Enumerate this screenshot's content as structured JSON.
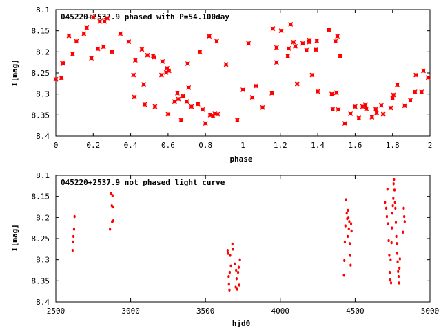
{
  "chart_data": [
    {
      "type": "scatter",
      "title": "045220+2537.9 phased with P=54.100day",
      "xlabel": "phase",
      "ylabel": "I[mag]",
      "xlim": [
        0,
        2
      ],
      "ylim": [
        8.1,
        8.4
      ],
      "y_inverted": true,
      "grid": false,
      "marker_color": "#ff0000",
      "xticks": [
        "0",
        "0.2",
        "0.4",
        "0.6",
        "0.8",
        "1",
        "1.2",
        "1.4",
        "1.6",
        "1.8",
        "2"
      ],
      "yticks": [
        "8.1",
        "8.15",
        "8.2",
        "8.25",
        "8.3",
        "8.35",
        "8.4"
      ],
      "points": [
        [
          0.0,
          8.265
        ],
        [
          0.03,
          8.262
        ],
        [
          0.035,
          8.227
        ],
        [
          0.04,
          8.228
        ],
        [
          0.07,
          8.162
        ],
        [
          0.09,
          8.205
        ],
        [
          0.11,
          8.175
        ],
        [
          0.15,
          8.157
        ],
        [
          0.165,
          8.143
        ],
        [
          0.19,
          8.215
        ],
        [
          0.2,
          8.118
        ],
        [
          0.225,
          8.193
        ],
        [
          0.235,
          8.128
        ],
        [
          0.255,
          8.188
        ],
        [
          0.26,
          8.128
        ],
        [
          0.275,
          8.12
        ],
        [
          0.3,
          8.2
        ],
        [
          0.345,
          8.157
        ],
        [
          0.39,
          8.176
        ],
        [
          0.415,
          8.255
        ],
        [
          0.42,
          8.307
        ],
        [
          0.425,
          8.22
        ],
        [
          0.46,
          8.194
        ],
        [
          0.47,
          8.277
        ],
        [
          0.475,
          8.325
        ],
        [
          0.49,
          8.208
        ],
        [
          0.52,
          8.21
        ],
        [
          0.525,
          8.213
        ],
        [
          0.53,
          8.33
        ],
        [
          0.565,
          8.255
        ],
        [
          0.57,
          8.223
        ],
        [
          0.59,
          8.249
        ],
        [
          0.595,
          8.239
        ],
        [
          0.6,
          8.348
        ],
        [
          0.605,
          8.245
        ],
        [
          0.635,
          8.318
        ],
        [
          0.65,
          8.298
        ],
        [
          0.655,
          8.312
        ],
        [
          0.67,
          8.362
        ],
        [
          0.68,
          8.305
        ],
        [
          0.7,
          8.318
        ],
        [
          0.705,
          8.228
        ],
        [
          0.71,
          8.285
        ],
        [
          0.725,
          8.33
        ],
        [
          0.76,
          8.324
        ],
        [
          0.77,
          8.2
        ],
        [
          0.785,
          8.337
        ],
        [
          0.8,
          8.37
        ],
        [
          0.82,
          8.163
        ],
        [
          0.825,
          8.35
        ],
        [
          0.84,
          8.352
        ],
        [
          0.85,
          8.347
        ],
        [
          0.86,
          8.175
        ],
        [
          0.865,
          8.348
        ],
        [
          0.91,
          8.23
        ],
        [
          0.97,
          8.362
        ],
        [
          1.0,
          8.29
        ],
        [
          1.03,
          8.18
        ],
        [
          1.05,
          8.308
        ],
        [
          1.07,
          8.281
        ],
        [
          1.105,
          8.332
        ],
        [
          1.155,
          8.298
        ],
        [
          1.16,
          8.145
        ],
        [
          1.18,
          8.225
        ],
        [
          1.18,
          8.19
        ],
        [
          1.205,
          8.15
        ],
        [
          1.24,
          8.21
        ],
        [
          1.245,
          8.192
        ],
        [
          1.255,
          8.135
        ],
        [
          1.27,
          8.177
        ],
        [
          1.28,
          8.187
        ],
        [
          1.29,
          8.276
        ],
        [
          1.32,
          8.18
        ],
        [
          1.34,
          8.196
        ],
        [
          1.355,
          8.172
        ],
        [
          1.355,
          8.177
        ],
        [
          1.37,
          8.255
        ],
        [
          1.39,
          8.195
        ],
        [
          1.395,
          8.174
        ],
        [
          1.4,
          8.294
        ],
        [
          1.46,
          8.148
        ],
        [
          1.475,
          8.3
        ],
        [
          1.48,
          8.336
        ],
        [
          1.495,
          8.175
        ],
        [
          1.5,
          8.297
        ],
        [
          1.505,
          8.163
        ],
        [
          1.51,
          8.337
        ],
        [
          1.52,
          8.21
        ],
        [
          1.545,
          8.37
        ],
        [
          1.575,
          8.347
        ],
        [
          1.6,
          8.33
        ],
        [
          1.62,
          8.357
        ],
        [
          1.64,
          8.33
        ],
        [
          1.655,
          8.326
        ],
        [
          1.66,
          8.335
        ],
        [
          1.69,
          8.355
        ],
        [
          1.71,
          8.336
        ],
        [
          1.715,
          8.345
        ],
        [
          1.74,
          8.327
        ],
        [
          1.75,
          8.348
        ],
        [
          1.79,
          8.333
        ],
        [
          1.8,
          8.31
        ],
        [
          1.805,
          8.302
        ],
        [
          1.825,
          8.278
        ],
        [
          1.865,
          8.328
        ],
        [
          1.895,
          8.315
        ],
        [
          1.92,
          8.295
        ],
        [
          1.925,
          8.255
        ],
        [
          1.955,
          8.295
        ],
        [
          1.965,
          8.245
        ],
        [
          1.99,
          8.261
        ]
      ]
    },
    {
      "type": "scatter",
      "title": "045220+2537.9 not phased light curve",
      "xlabel": "hjd0",
      "ylabel": "I[mag]",
      "xlim": [
        2500,
        5000
      ],
      "ylim": [
        8.1,
        8.4
      ],
      "y_inverted": true,
      "grid": false,
      "marker_color": "#ff0000",
      "xticks": [
        "2500",
        "3000",
        "3500",
        "4000",
        "4500",
        "5000"
      ],
      "yticks": [
        "8.1",
        "8.15",
        "8.2",
        "8.25",
        "8.3",
        "8.35",
        "8.4"
      ],
      "points": [
        [
          2612,
          8.278
        ],
        [
          2615,
          8.258
        ],
        [
          2618,
          8.245
        ],
        [
          2622,
          8.228
        ],
        [
          2625,
          8.198
        ],
        [
          2862,
          8.228
        ],
        [
          2870,
          8.143
        ],
        [
          2874,
          8.172
        ],
        [
          2876,
          8.21
        ],
        [
          2879,
          8.148
        ],
        [
          2882,
          8.175
        ],
        [
          2884,
          8.208
        ],
        [
          3648,
          8.278
        ],
        [
          3652,
          8.285
        ],
        [
          3655,
          8.34
        ],
        [
          3657,
          8.358
        ],
        [
          3660,
          8.372
        ],
        [
          3662,
          8.33
        ],
        [
          3665,
          8.29
        ],
        [
          3670,
          8.315
        ],
        [
          3680,
          8.263
        ],
        [
          3684,
          8.275
        ],
        [
          3695,
          8.31
        ],
        [
          3702,
          8.365
        ],
        [
          3705,
          8.325
        ],
        [
          3708,
          8.345
        ],
        [
          3712,
          8.37
        ],
        [
          3718,
          8.33
        ],
        [
          3722,
          8.318
        ],
        [
          3726,
          8.36
        ],
        [
          3730,
          8.3
        ],
        [
          4425,
          8.337
        ],
        [
          4428,
          8.302
        ],
        [
          4431,
          8.258
        ],
        [
          4435,
          8.22
        ],
        [
          4440,
          8.158
        ],
        [
          4444,
          8.19
        ],
        [
          4447,
          8.203
        ],
        [
          4450,
          8.245
        ],
        [
          4452,
          8.183
        ],
        [
          4455,
          8.2
        ],
        [
          4458,
          8.227
        ],
        [
          4461,
          8.21
        ],
        [
          4464,
          8.262
        ],
        [
          4467,
          8.29
        ],
        [
          4470,
          8.313
        ],
        [
          4473,
          8.215
        ],
        [
          4476,
          8.232
        ],
        [
          4700,
          8.165
        ],
        [
          4708,
          8.178
        ],
        [
          4712,
          8.198
        ],
        [
          4716,
          8.133
        ],
        [
          4720,
          8.215
        ],
        [
          4724,
          8.255
        ],
        [
          4728,
          8.29
        ],
        [
          4731,
          8.33
        ],
        [
          4734,
          8.348
        ],
        [
          4737,
          8.3
        ],
        [
          4740,
          8.355
        ],
        [
          4743,
          8.26
        ],
        [
          4746,
          8.225
        ],
        [
          4749,
          8.19
        ],
        [
          4752,
          8.172
        ],
        [
          4755,
          8.155
        ],
        [
          4757,
          8.12
        ],
        [
          4760,
          8.11
        ],
        [
          4763,
          8.135
        ],
        [
          4766,
          8.165
        ],
        [
          4769,
          8.178
        ],
        [
          4772,
          8.212
        ],
        [
          4775,
          8.245
        ],
        [
          4778,
          8.262
        ],
        [
          4781,
          8.285
        ],
        [
          4784,
          8.305
        ],
        [
          4787,
          8.328
        ],
        [
          4790,
          8.34
        ],
        [
          4793,
          8.355
        ],
        [
          4796,
          8.32
        ],
        [
          4799,
          8.298
        ],
        [
          4820,
          8.235
        ],
        [
          4825,
          8.178
        ],
        [
          4828,
          8.198
        ],
        [
          4831,
          8.21
        ]
      ]
    }
  ]
}
